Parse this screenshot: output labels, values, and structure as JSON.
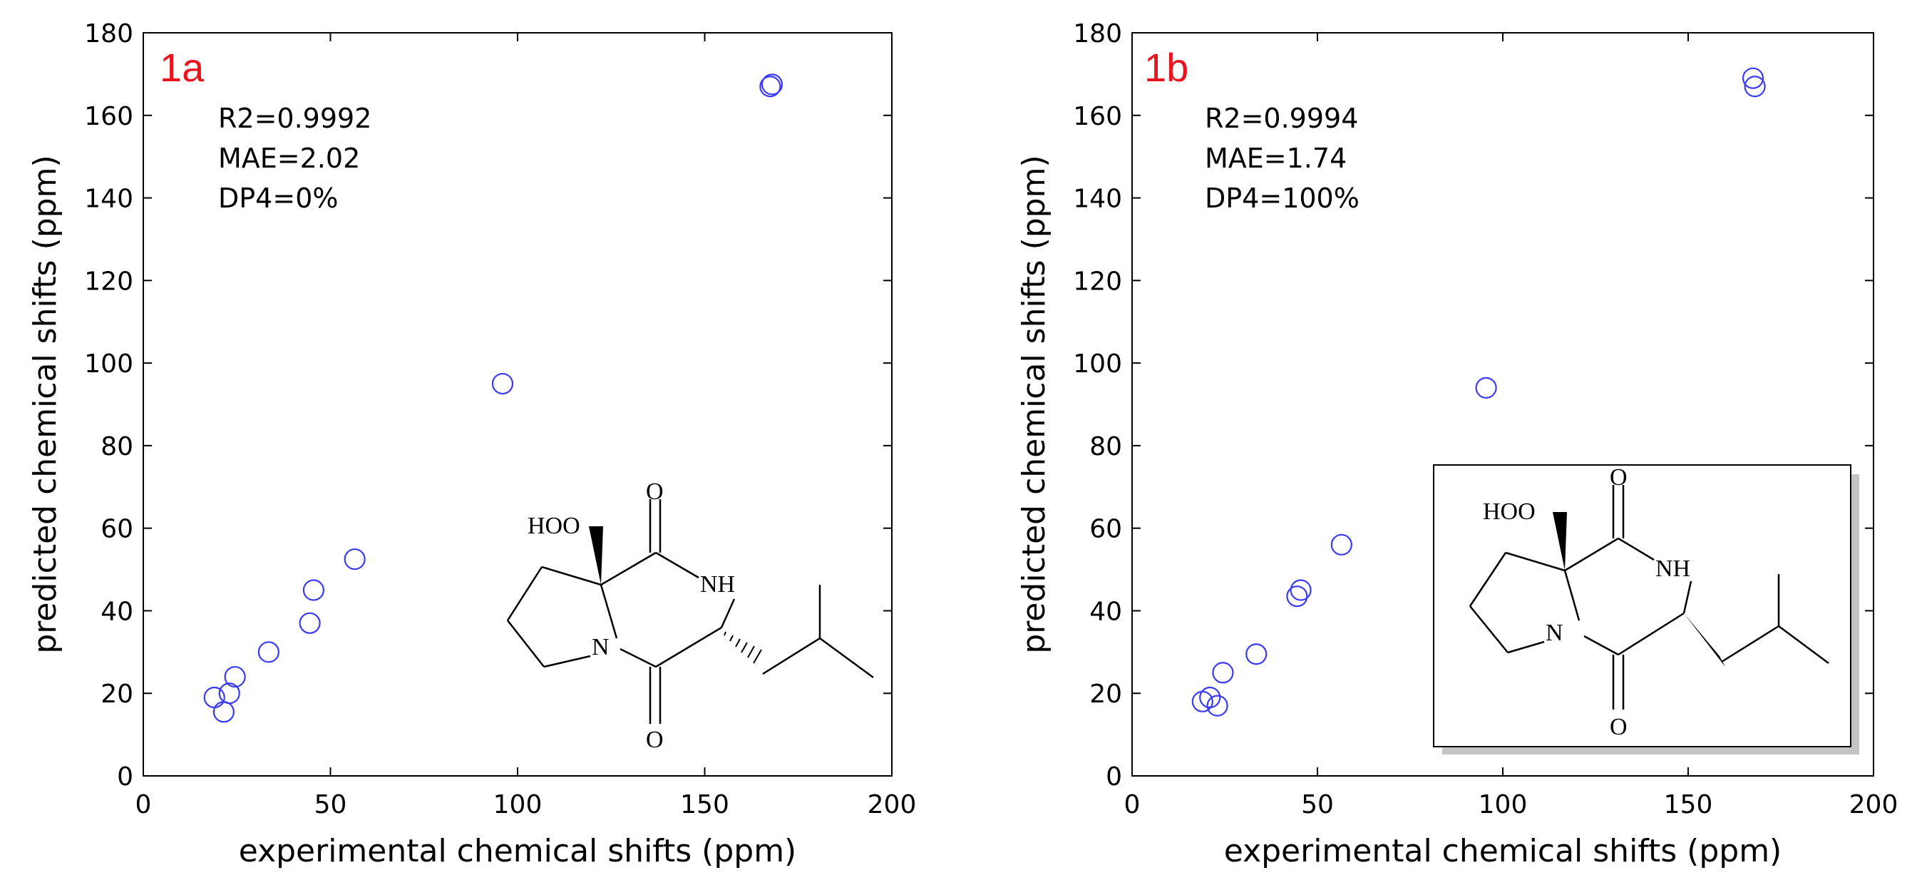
{
  "chart_data": [
    {
      "type": "scatter",
      "panel_label": "1a",
      "xlabel": "experimental chemical shifts (ppm)",
      "ylabel": "predicted chemical shifts (ppm)",
      "xlim": [
        0,
        200
      ],
      "ylim": [
        0,
        180
      ],
      "xticks": [
        "0",
        "50",
        "100",
        "150",
        "200"
      ],
      "yticks": [
        "0",
        "20",
        "40",
        "60",
        "80",
        "100",
        "120",
        "140",
        "160",
        "180"
      ],
      "grid": false,
      "marker_color": "#3b3bf5",
      "annotations": [
        "R2=0.9992",
        "MAE=2.02",
        "DP4=0%"
      ],
      "points": [
        {
          "x": 19.0,
          "y": 19.0
        },
        {
          "x": 21.5,
          "y": 15.5
        },
        {
          "x": 23.0,
          "y": 20.0
        },
        {
          "x": 24.5,
          "y": 24.0
        },
        {
          "x": 33.5,
          "y": 30.0
        },
        {
          "x": 44.5,
          "y": 37.0
        },
        {
          "x": 45.5,
          "y": 45.0
        },
        {
          "x": 56.5,
          "y": 52.5
        },
        {
          "x": 96.0,
          "y": 95.0
        },
        {
          "x": 167.5,
          "y": 167.0
        },
        {
          "x": 168.0,
          "y": 167.5
        }
      ],
      "structure_labels": {
        "hoo": "HOO",
        "o_top": "O",
        "nh": "NH",
        "n": "N",
        "o_bottom": "O"
      }
    },
    {
      "type": "scatter",
      "panel_label": "1b",
      "xlabel": "experimental chemical shifts (ppm)",
      "ylabel": "predicted chemical shifts (ppm)",
      "xlim": [
        0,
        200
      ],
      "ylim": [
        0,
        180
      ],
      "xticks": [
        "0",
        "50",
        "100",
        "150",
        "200"
      ],
      "yticks": [
        "0",
        "20",
        "40",
        "60",
        "80",
        "100",
        "120",
        "140",
        "160",
        "180"
      ],
      "grid": false,
      "marker_color": "#3b3bf5",
      "annotations": [
        "R2=0.9994",
        "MAE=1.74",
        "DP4=100%"
      ],
      "points": [
        {
          "x": 19.0,
          "y": 18.0
        },
        {
          "x": 21.0,
          "y": 19.0
        },
        {
          "x": 23.0,
          "y": 17.0
        },
        {
          "x": 24.5,
          "y": 25.0
        },
        {
          "x": 33.5,
          "y": 29.5
        },
        {
          "x": 44.5,
          "y": 43.5
        },
        {
          "x": 45.5,
          "y": 45.0
        },
        {
          "x": 56.5,
          "y": 56.0
        },
        {
          "x": 95.5,
          "y": 94.0
        },
        {
          "x": 167.5,
          "y": 169.0
        },
        {
          "x": 168.0,
          "y": 167.0
        }
      ],
      "structure_labels": {
        "hoo": "HOO",
        "o_top": "O",
        "nh": "NH",
        "n": "N",
        "o_bottom": "O"
      }
    }
  ]
}
